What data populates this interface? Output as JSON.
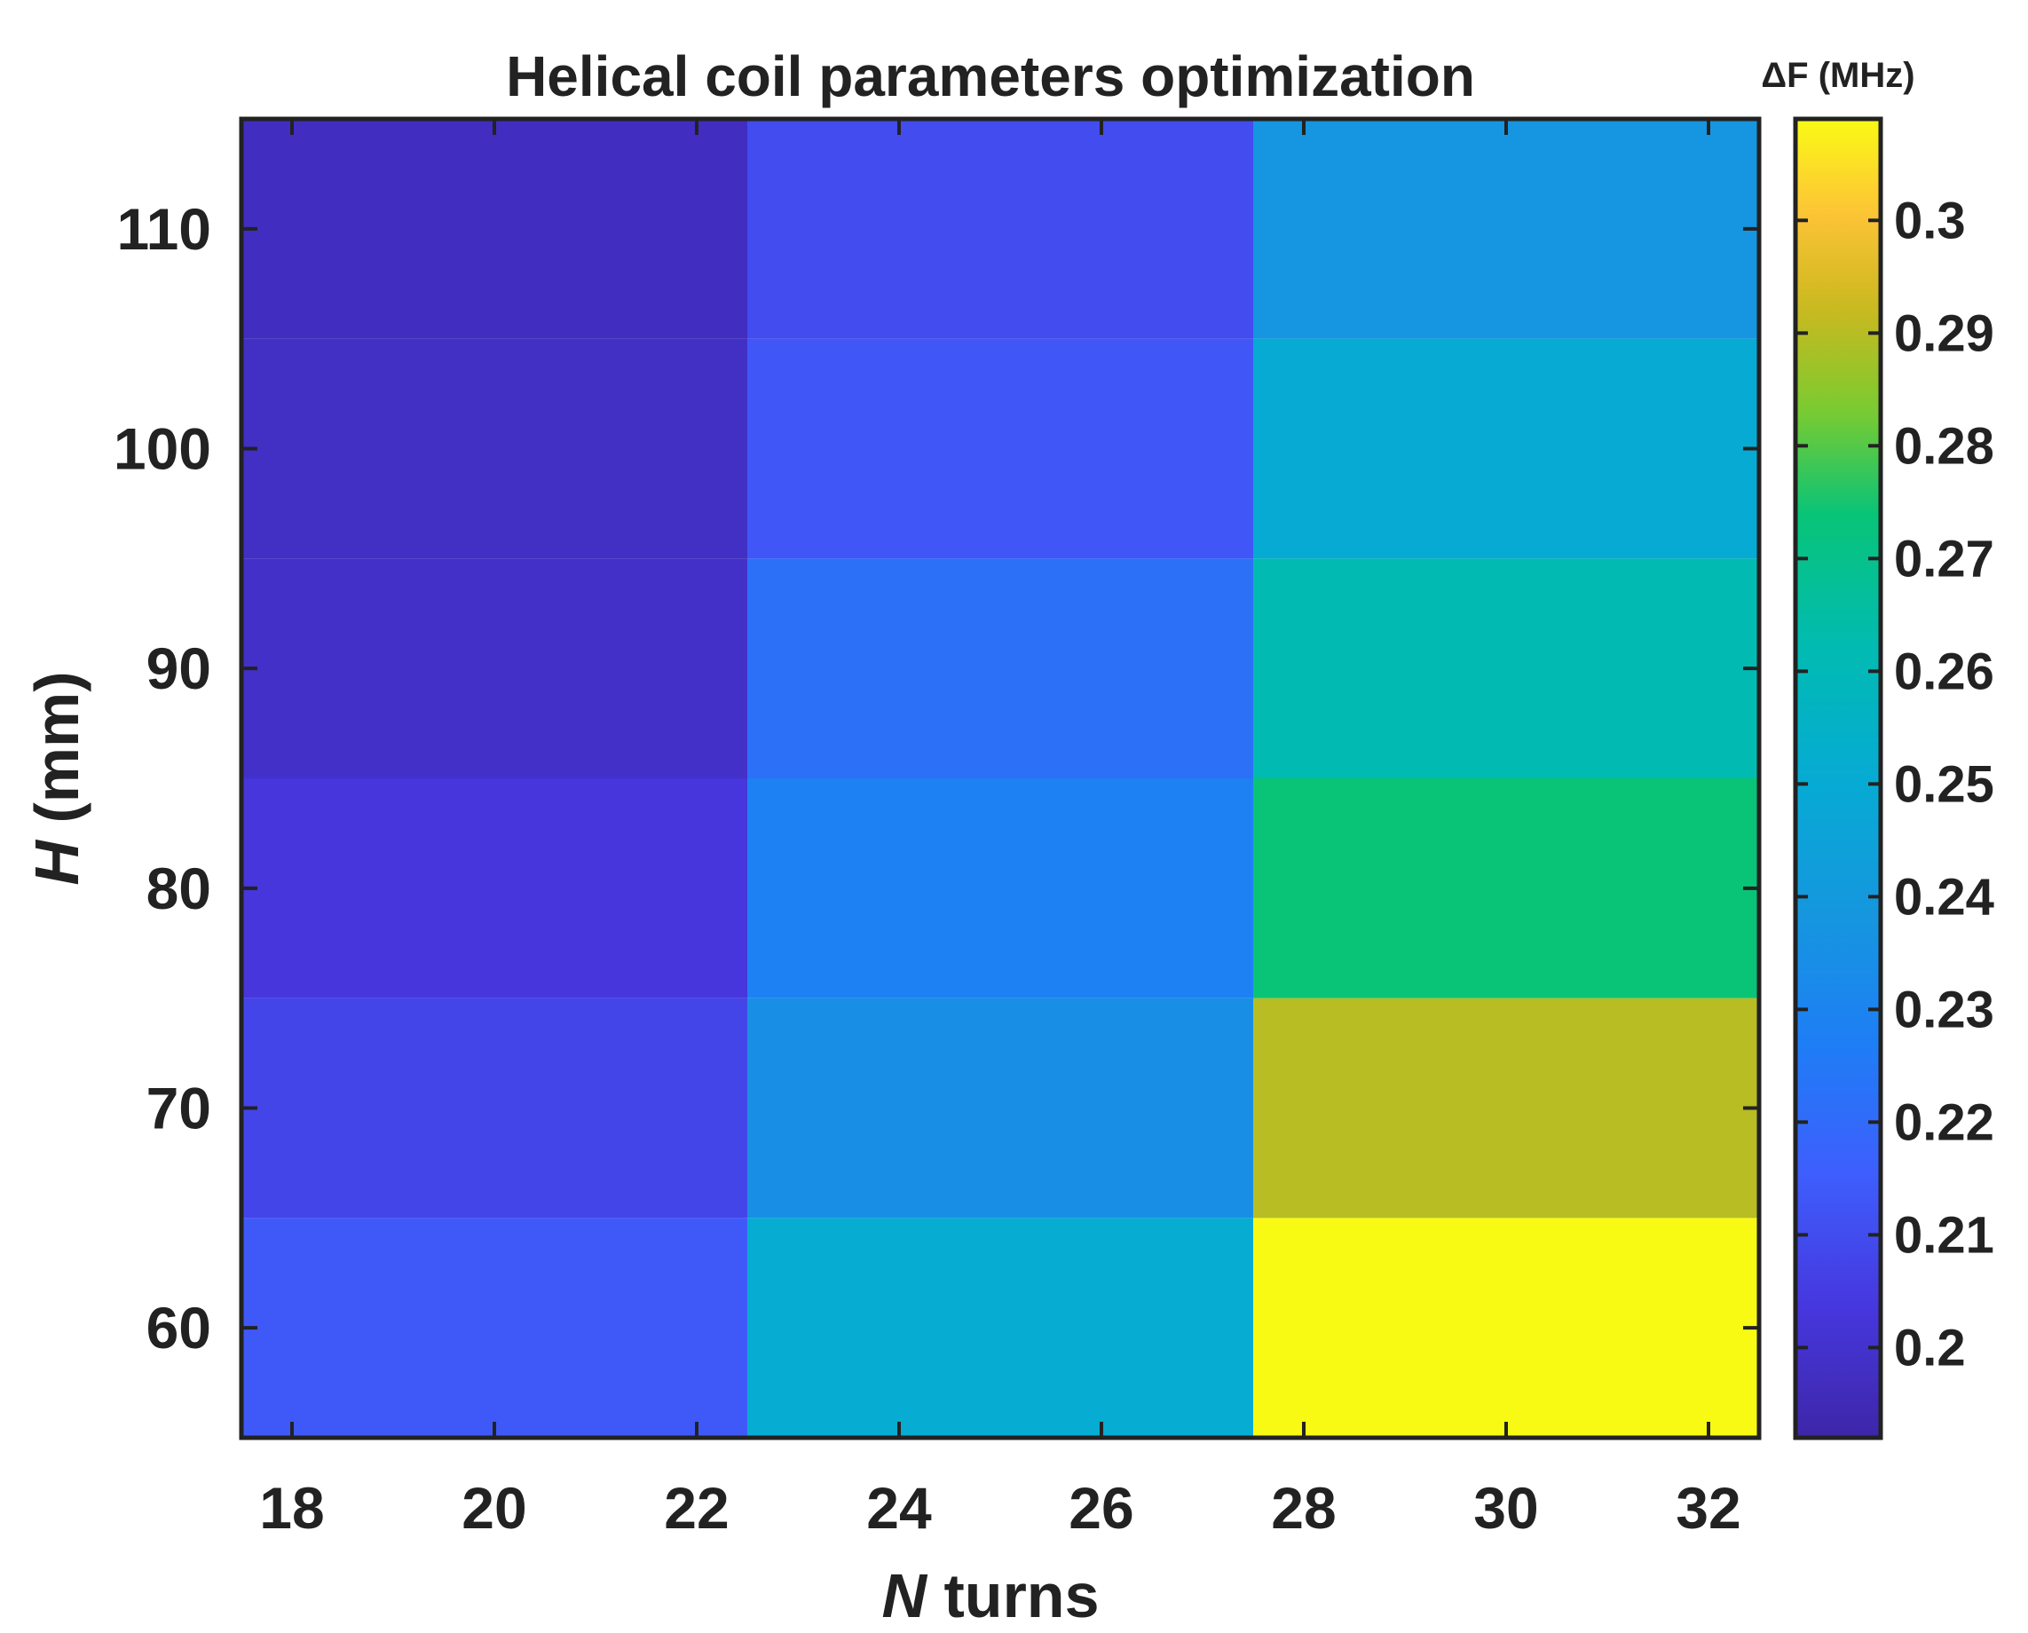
{
  "chart_data": {
    "type": "heatmap",
    "title": "Helical coil parameters optimization",
    "xlabel": {
      "italic": "N",
      "rest": " turns"
    },
    "ylabel": {
      "italic": "H",
      "rest": " (mm)"
    },
    "colorbar_title": "ΔF (MHz)",
    "x_ticks": [
      "18",
      "20",
      "22",
      "24",
      "26",
      "28",
      "30",
      "32"
    ],
    "y_ticks": [
      "60",
      "70",
      "80",
      "90",
      "100",
      "110"
    ],
    "colorbar_ticks": [
      "0.2",
      "0.21",
      "0.22",
      "0.23",
      "0.24",
      "0.25",
      "0.26",
      "0.27",
      "0.28",
      "0.29",
      "0.3"
    ],
    "xlim": [
      17.5,
      32.5
    ],
    "ylim": [
      55,
      115
    ],
    "clim": [
      0.192,
      0.309
    ],
    "colormap": "parula",
    "x_bins": [
      {
        "from": 17.5,
        "to": 22.5
      },
      {
        "from": 22.5,
        "to": 27.5
      },
      {
        "from": 27.5,
        "to": 32.5
      }
    ],
    "y_values": [
      60,
      70,
      80,
      90,
      100,
      110
    ],
    "values": [
      [
        0.214,
        0.251,
        0.309
      ],
      [
        0.208,
        0.235,
        0.29
      ],
      [
        0.203,
        0.228,
        0.274
      ],
      [
        0.199,
        0.222,
        0.262
      ],
      [
        0.198,
        0.213,
        0.25
      ],
      [
        0.197,
        0.21,
        0.238
      ]
    ]
  }
}
